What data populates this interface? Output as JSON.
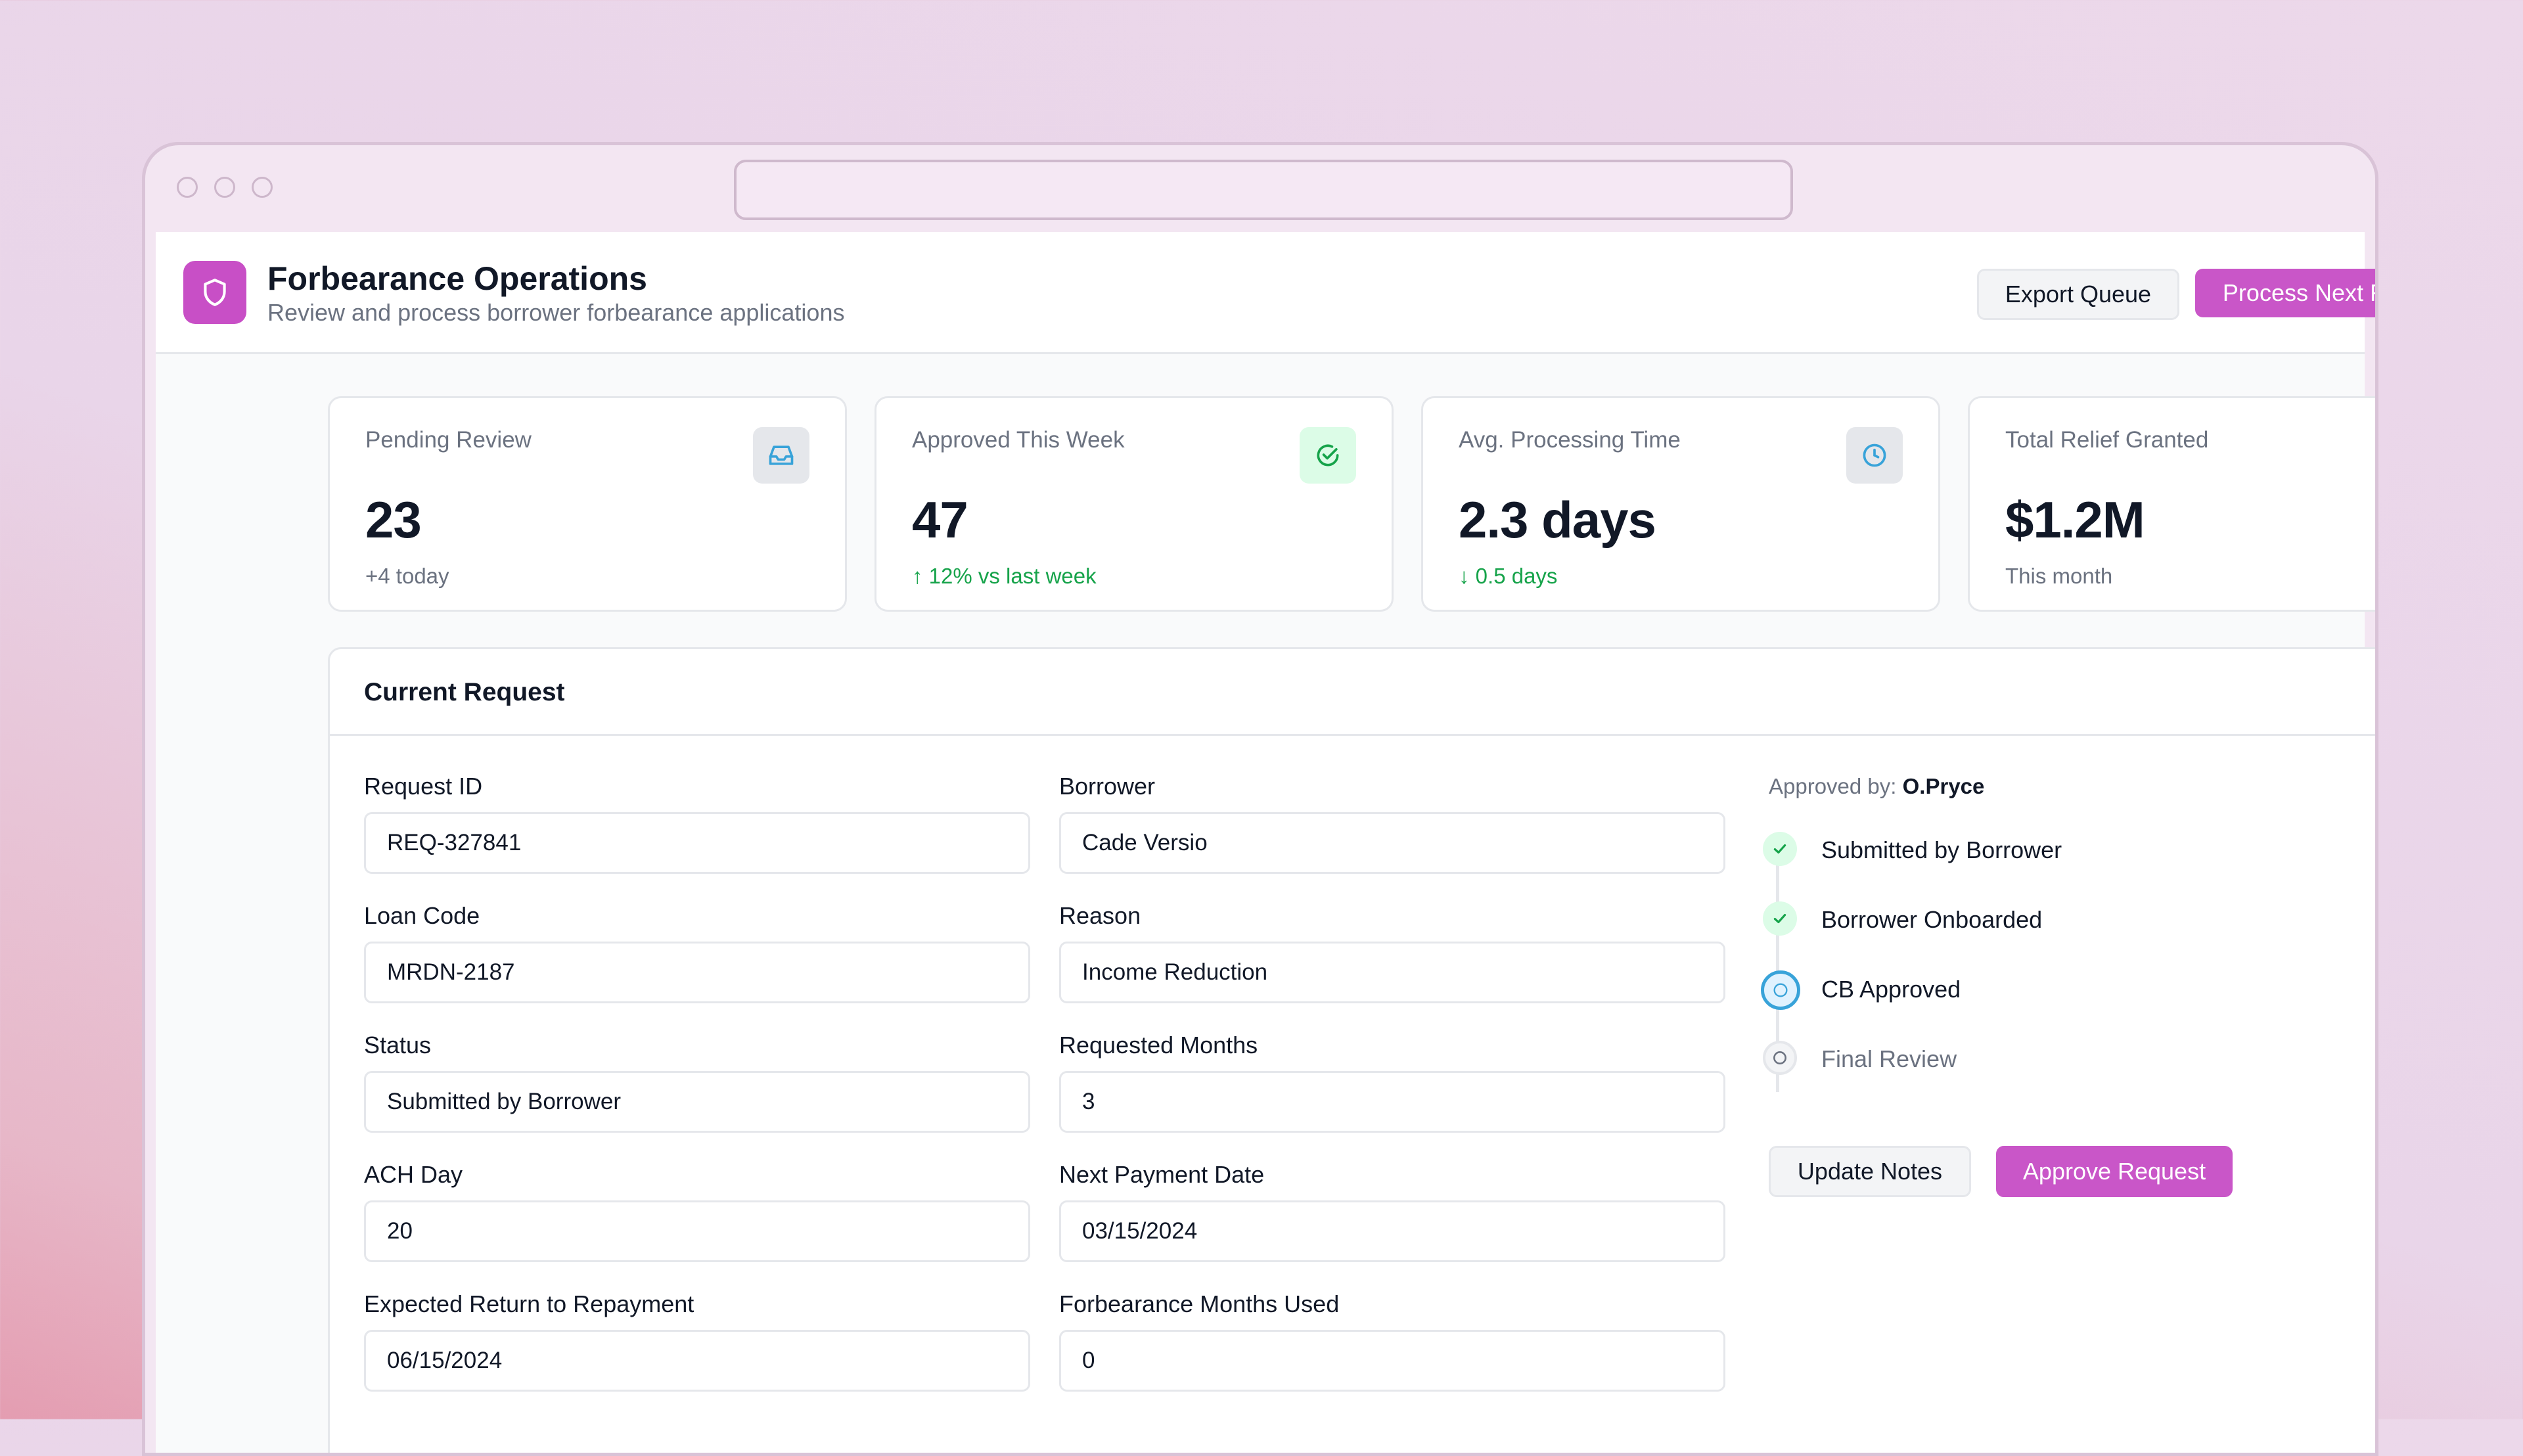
{
  "app": {
    "title": "Forbearance Operations",
    "subtitle": "Review and process borrower forbearance applications",
    "export_label": "Export Queue",
    "process_label": "Process Next Request"
  },
  "stats": [
    {
      "label": "Pending Review",
      "value": "23",
      "sub": "+4 today",
      "icon": "inbox-icon",
      "accent": "#38a3d9"
    },
    {
      "label": "Approved This Week",
      "value": "47",
      "sub": "↑ 12% vs last week",
      "icon": "check-circle-icon",
      "accent": "#16a34a"
    },
    {
      "label": "Avg. Processing Time",
      "value": "2.3 days",
      "sub": "↓ 0.5 days",
      "icon": "clock-icon",
      "accent": "#38a3d9"
    },
    {
      "label": "Total Relief Granted",
      "value": "$1.2M",
      "sub": "This month",
      "icon": "dollar-icon",
      "accent": "#16a34a"
    }
  ],
  "request": {
    "title": "Current Request",
    "fields": [
      {
        "label": "Request ID",
        "value": "REQ-327841"
      },
      {
        "label": "Borrower",
        "value": "Cade Versio"
      },
      {
        "label": "Loan Code",
        "value": "MRDN-2187"
      },
      {
        "label": "Reason",
        "value": "Income Reduction"
      },
      {
        "label": "Status",
        "value": "Submitted by Borrower"
      },
      {
        "label": "Requested Months",
        "value": "3"
      },
      {
        "label": "ACH Day",
        "value": "20"
      },
      {
        "label": "Next Payment Date",
        "value": "03/15/2024"
      },
      {
        "label": "Expected Return to Repayment",
        "value": "06/15/2024"
      },
      {
        "label": "Forbearance Months Used",
        "value": "0"
      }
    ],
    "approved_by_label": "Approved by:",
    "approved_by_name": "O.Pryce",
    "steps": [
      {
        "label": "Submitted by Borrower",
        "state": "done"
      },
      {
        "label": "Borrower Onboarded",
        "state": "done"
      },
      {
        "label": "CB Approved",
        "state": "current"
      },
      {
        "label": "Final Review",
        "state": "pending"
      }
    ],
    "update_notes_label": "Update Notes",
    "approve_label": "Approve Request"
  },
  "colors": {
    "brand": "#c956c8",
    "success": "#16a34a",
    "info": "#38a3d9"
  }
}
